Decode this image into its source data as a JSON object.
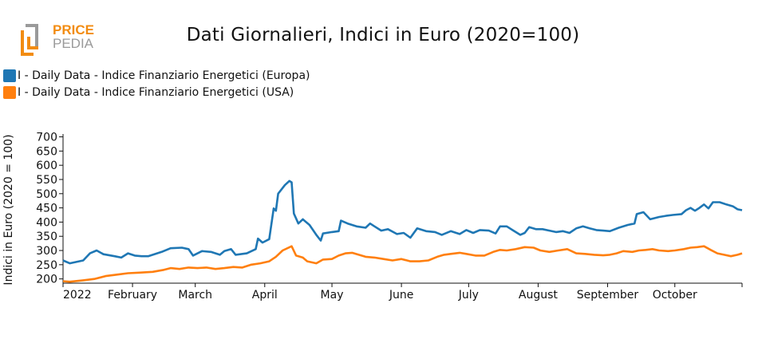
{
  "logo": {
    "line1": "PRICE",
    "line2": "PEDIA",
    "colors": {
      "orange": "#f28c12",
      "grey": "#9a9a9a"
    }
  },
  "chart_data": {
    "type": "line",
    "title": "Dati Giornalieri, Indici in Euro (2020=100)",
    "xlabel": "",
    "ylabel": "Indici in Euro (2020 = 100)",
    "x_range": [
      "2022-01-01",
      "2022-10-31"
    ],
    "ylim": [
      185,
      710
    ],
    "y_ticks": [
      200,
      250,
      300,
      350,
      400,
      450,
      500,
      550,
      600,
      650,
      700
    ],
    "x_ticks": [
      {
        "date": "2022-01-01",
        "label": "2022"
      },
      {
        "date": "2022-02-01",
        "label": "February"
      },
      {
        "date": "2022-03-01",
        "label": "March"
      },
      {
        "date": "2022-04-01",
        "label": "April"
      },
      {
        "date": "2022-05-01",
        "label": "May"
      },
      {
        "date": "2022-06-01",
        "label": "June"
      },
      {
        "date": "2022-07-01",
        "label": "July"
      },
      {
        "date": "2022-08-01",
        "label": "August"
      },
      {
        "date": "2022-09-01",
        "label": "September"
      },
      {
        "date": "2022-10-01",
        "label": "October"
      }
    ],
    "grid": false,
    "legend_position": "top-left",
    "series": [
      {
        "name": "I - Daily Data - Indice Finanziario Energetici (Europa)",
        "color": "#1f77b4",
        "points": [
          [
            "2022-01-01",
            265
          ],
          [
            "2022-01-04",
            255
          ],
          [
            "2022-01-10",
            265
          ],
          [
            "2022-01-13",
            290
          ],
          [
            "2022-01-16",
            300
          ],
          [
            "2022-01-19",
            287
          ],
          [
            "2022-01-24",
            280
          ],
          [
            "2022-01-27",
            275
          ],
          [
            "2022-01-30",
            290
          ],
          [
            "2022-02-02",
            282
          ],
          [
            "2022-02-05",
            280
          ],
          [
            "2022-02-08",
            280
          ],
          [
            "2022-02-14",
            295
          ],
          [
            "2022-02-18",
            308
          ],
          [
            "2022-02-23",
            310
          ],
          [
            "2022-02-26",
            305
          ],
          [
            "2022-02-28",
            282
          ],
          [
            "2022-03-04",
            298
          ],
          [
            "2022-03-08",
            295
          ],
          [
            "2022-03-12",
            285
          ],
          [
            "2022-03-14",
            298
          ],
          [
            "2022-03-17",
            305
          ],
          [
            "2022-03-19",
            285
          ],
          [
            "2022-03-24",
            290
          ],
          [
            "2022-03-28",
            305
          ],
          [
            "2022-03-29",
            342
          ],
          [
            "2022-03-31",
            328
          ],
          [
            "2022-04-03",
            340
          ],
          [
            "2022-04-05",
            448
          ],
          [
            "2022-04-06",
            440
          ],
          [
            "2022-04-07",
            500
          ],
          [
            "2022-04-10",
            530
          ],
          [
            "2022-04-12",
            545
          ],
          [
            "2022-04-13",
            540
          ],
          [
            "2022-04-14",
            430
          ],
          [
            "2022-04-16",
            395
          ],
          [
            "2022-04-18",
            410
          ],
          [
            "2022-04-21",
            390
          ],
          [
            "2022-04-24",
            355
          ],
          [
            "2022-04-26",
            335
          ],
          [
            "2022-04-27",
            360
          ],
          [
            "2022-05-01",
            365
          ],
          [
            "2022-05-04",
            368
          ],
          [
            "2022-05-05",
            405
          ],
          [
            "2022-05-08",
            395
          ],
          [
            "2022-05-12",
            385
          ],
          [
            "2022-05-16",
            380
          ],
          [
            "2022-05-18",
            395
          ],
          [
            "2022-05-20",
            385
          ],
          [
            "2022-05-23",
            370
          ],
          [
            "2022-05-26",
            375
          ],
          [
            "2022-05-30",
            358
          ],
          [
            "2022-06-02",
            362
          ],
          [
            "2022-06-05",
            345
          ],
          [
            "2022-06-08",
            378
          ],
          [
            "2022-06-12",
            368
          ],
          [
            "2022-06-16",
            365
          ],
          [
            "2022-06-19",
            355
          ],
          [
            "2022-06-23",
            368
          ],
          [
            "2022-06-27",
            358
          ],
          [
            "2022-06-30",
            372
          ],
          [
            "2022-07-03",
            362
          ],
          [
            "2022-07-06",
            372
          ],
          [
            "2022-07-10",
            370
          ],
          [
            "2022-07-13",
            360
          ],
          [
            "2022-07-15",
            385
          ],
          [
            "2022-07-18",
            385
          ],
          [
            "2022-07-21",
            370
          ],
          [
            "2022-07-24",
            355
          ],
          [
            "2022-07-26",
            362
          ],
          [
            "2022-07-28",
            382
          ],
          [
            "2022-07-31",
            375
          ],
          [
            "2022-08-03",
            375
          ],
          [
            "2022-08-06",
            370
          ],
          [
            "2022-08-09",
            365
          ],
          [
            "2022-08-12",
            368
          ],
          [
            "2022-08-15",
            362
          ],
          [
            "2022-08-18",
            378
          ],
          [
            "2022-08-21",
            385
          ],
          [
            "2022-08-24",
            378
          ],
          [
            "2022-08-27",
            372
          ],
          [
            "2022-08-30",
            370
          ],
          [
            "2022-09-02",
            368
          ],
          [
            "2022-09-06",
            380
          ],
          [
            "2022-09-10",
            390
          ],
          [
            "2022-09-13",
            395
          ],
          [
            "2022-09-14",
            428
          ],
          [
            "2022-09-17",
            435
          ],
          [
            "2022-09-20",
            410
          ],
          [
            "2022-09-24",
            418
          ],
          [
            "2022-09-27",
            422
          ],
          [
            "2022-09-30",
            425
          ],
          [
            "2022-10-04",
            428
          ],
          [
            "2022-10-06",
            442
          ],
          [
            "2022-10-08",
            450
          ],
          [
            "2022-10-10",
            440
          ],
          [
            "2022-10-12",
            450
          ],
          [
            "2022-10-14",
            462
          ],
          [
            "2022-10-16",
            448
          ],
          [
            "2022-10-18",
            470
          ],
          [
            "2022-10-21",
            470
          ],
          [
            "2022-10-24",
            462
          ],
          [
            "2022-10-27",
            455
          ],
          [
            "2022-10-29",
            445
          ],
          [
            "2022-10-31",
            442
          ]
        ]
      },
      {
        "name": "I - Daily Data - Indice Finanziario Energetici (USA)",
        "color": "#ff7f0e",
        "points": [
          [
            "2022-01-01",
            192
          ],
          [
            "2022-01-04",
            190
          ],
          [
            "2022-01-10",
            195
          ],
          [
            "2022-01-15",
            200
          ],
          [
            "2022-01-20",
            210
          ],
          [
            "2022-01-25",
            215
          ],
          [
            "2022-01-30",
            220
          ],
          [
            "2022-02-04",
            222
          ],
          [
            "2022-02-10",
            225
          ],
          [
            "2022-02-15",
            232
          ],
          [
            "2022-02-18",
            238
          ],
          [
            "2022-02-22",
            235
          ],
          [
            "2022-02-26",
            240
          ],
          [
            "2022-03-02",
            238
          ],
          [
            "2022-03-06",
            240
          ],
          [
            "2022-03-10",
            235
          ],
          [
            "2022-03-14",
            238
          ],
          [
            "2022-03-18",
            242
          ],
          [
            "2022-03-22",
            240
          ],
          [
            "2022-03-26",
            250
          ],
          [
            "2022-03-30",
            255
          ],
          [
            "2022-04-03",
            262
          ],
          [
            "2022-04-06",
            278
          ],
          [
            "2022-04-09",
            300
          ],
          [
            "2022-04-13",
            315
          ],
          [
            "2022-04-15",
            282
          ],
          [
            "2022-04-18",
            275
          ],
          [
            "2022-04-20",
            262
          ],
          [
            "2022-04-24",
            255
          ],
          [
            "2022-04-27",
            268
          ],
          [
            "2022-05-01",
            270
          ],
          [
            "2022-05-04",
            282
          ],
          [
            "2022-05-07",
            290
          ],
          [
            "2022-05-10",
            292
          ],
          [
            "2022-05-13",
            285
          ],
          [
            "2022-05-16",
            278
          ],
          [
            "2022-05-20",
            275
          ],
          [
            "2022-05-24",
            270
          ],
          [
            "2022-05-28",
            265
          ],
          [
            "2022-06-01",
            270
          ],
          [
            "2022-06-05",
            262
          ],
          [
            "2022-06-09",
            262
          ],
          [
            "2022-06-13",
            265
          ],
          [
            "2022-06-17",
            278
          ],
          [
            "2022-06-20",
            285
          ],
          [
            "2022-06-23",
            288
          ],
          [
            "2022-06-27",
            292
          ],
          [
            "2022-06-30",
            288
          ],
          [
            "2022-07-04",
            282
          ],
          [
            "2022-07-08",
            282
          ],
          [
            "2022-07-12",
            295
          ],
          [
            "2022-07-15",
            302
          ],
          [
            "2022-07-18",
            300
          ],
          [
            "2022-07-22",
            305
          ],
          [
            "2022-07-26",
            312
          ],
          [
            "2022-07-30",
            310
          ],
          [
            "2022-08-02",
            300
          ],
          [
            "2022-08-06",
            295
          ],
          [
            "2022-08-10",
            300
          ],
          [
            "2022-08-14",
            305
          ],
          [
            "2022-08-18",
            290
          ],
          [
            "2022-08-22",
            288
          ],
          [
            "2022-08-26",
            285
          ],
          [
            "2022-08-30",
            283
          ],
          [
            "2022-09-02",
            285
          ],
          [
            "2022-09-05",
            290
          ],
          [
            "2022-09-08",
            298
          ],
          [
            "2022-09-12",
            295
          ],
          [
            "2022-09-15",
            300
          ],
          [
            "2022-09-18",
            302
          ],
          [
            "2022-09-21",
            305
          ],
          [
            "2022-09-24",
            300
          ],
          [
            "2022-09-28",
            298
          ],
          [
            "2022-10-01",
            300
          ],
          [
            "2022-10-05",
            305
          ],
          [
            "2022-10-08",
            310
          ],
          [
            "2022-10-11",
            312
          ],
          [
            "2022-10-14",
            315
          ],
          [
            "2022-10-17",
            302
          ],
          [
            "2022-10-20",
            290
          ],
          [
            "2022-10-23",
            285
          ],
          [
            "2022-10-26",
            280
          ],
          [
            "2022-10-29",
            285
          ],
          [
            "2022-10-31",
            290
          ]
        ]
      }
    ]
  }
}
